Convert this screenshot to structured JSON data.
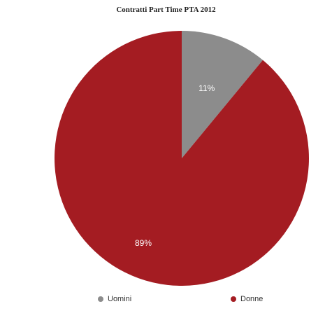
{
  "chart_data": {
    "type": "pie",
    "title": "Contratti Part Time PTA 2012",
    "categories": [
      "Uomini",
      "Donne"
    ],
    "values": [
      11,
      89
    ],
    "labels": [
      "11%",
      "89%"
    ],
    "colors": [
      "#8c8c8c",
      "#a41c22"
    ],
    "legend_placement": "bottom"
  }
}
